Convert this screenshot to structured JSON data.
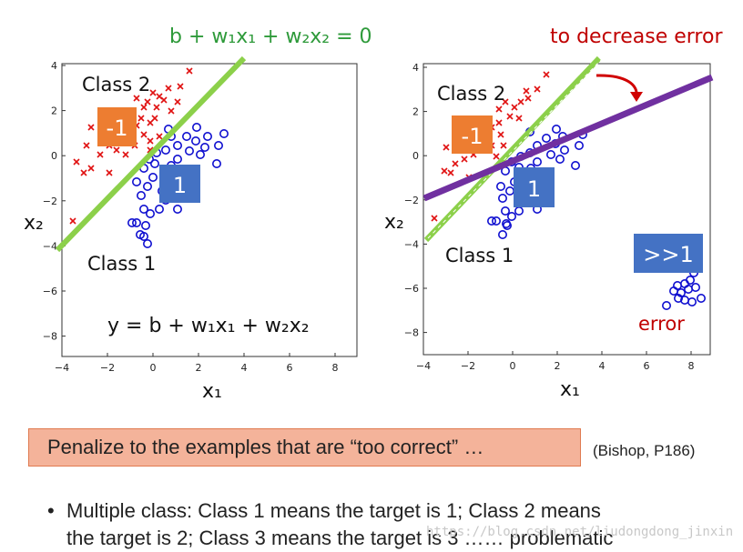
{
  "left_plot": {
    "boundary_label": "b + w₁x₁ + w₂x₂ = 0",
    "class2_label": "Class 2",
    "class1_label": "Class 1",
    "target_minus1": "-1",
    "target_1": "1",
    "formula": "y = b + w₁x₁ + w₂x₂",
    "xlabel": "x₁",
    "ylabel": "x₂",
    "xticks": [
      "−4",
      "−2",
      "0",
      "2",
      "4",
      "6",
      "8"
    ],
    "yticks": [
      "4",
      "2",
      "0",
      "−2",
      "−4",
      "−6",
      "−8"
    ]
  },
  "right_plot": {
    "annotation": "to decrease error",
    "class2_label": "Class 2",
    "class1_label": "Class 1",
    "target_minus1": "-1",
    "target_1": "1",
    "target_far": ">>1",
    "error_label": "error",
    "xlabel": "x₁",
    "ylabel": "x₂",
    "xticks": [
      "−4",
      "−2",
      "0",
      "2",
      "4",
      "6",
      "8"
    ],
    "yticks": [
      "4",
      "2",
      "0",
      "−2",
      "−4",
      "−6",
      "−8"
    ]
  },
  "colors": {
    "green_line": "#8cd04a",
    "purple_line": "#7030a0",
    "class2_marker": "#e01010",
    "class1_marker": "#1010d0",
    "orange_box": "#ed7d31",
    "blue_box": "#4472c4",
    "red_text": "#c00000",
    "green_text": "#2e9a3a"
  },
  "penalize_text": "Penalize to the examples that are “too correct” …",
  "citation": "(Bishop, P186)",
  "bullet_line1": "Multiple class: Class 1 means the target is 1; Class 2 means",
  "bullet_line2": "the target is 2; Class 3 means the target is 3 …… problematic",
  "watermark": "https://blog.csdn.net/liudongdong_jinxin"
}
